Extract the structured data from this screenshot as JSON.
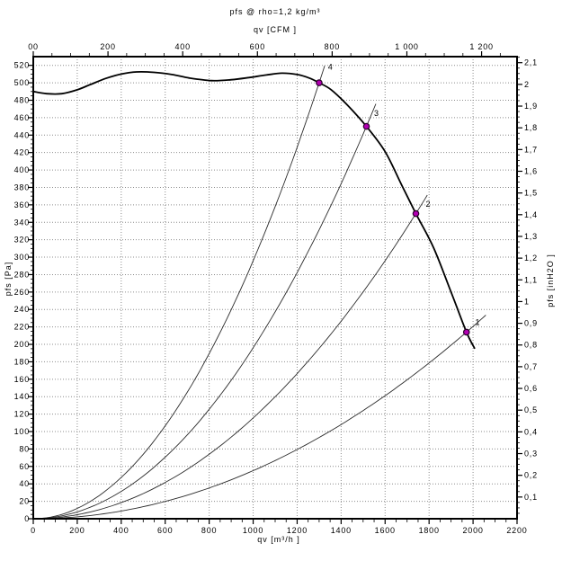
{
  "chart_data": {
    "type": "line",
    "title": "pfs @ rho=1,2 kg/m³",
    "axes": {
      "bottom": {
        "label": "qv [m³/h ]",
        "min": 0,
        "max": 2200,
        "major_step": 200,
        "minor_step": 50,
        "tick_values": [
          0,
          200,
          400,
          600,
          800,
          1000,
          1200,
          1400,
          1600,
          1800,
          2000,
          2200
        ],
        "tick_labels": [
          "0",
          "200",
          "400",
          "600",
          "800",
          "1000",
          "1200",
          "1400",
          "1600",
          "1800",
          "2000",
          "2200"
        ]
      },
      "top": {
        "label": "qv [CFM ]",
        "unit": "CFM",
        "m3h_per_cfm": 1.699011,
        "major_step": 200,
        "minor_step": 50,
        "tick_values": [
          0,
          200,
          400,
          600,
          800,
          1000,
          1200
        ],
        "tick_labels": [
          "00",
          "200",
          "400",
          "600",
          "800",
          "1 000",
          "1 200"
        ]
      },
      "left": {
        "label": "pfs [Pa]",
        "min": 0,
        "max": 530,
        "major_step": 20,
        "minor_step": 5,
        "labeled_max": 520,
        "tick_labels": [
          "0",
          "20",
          "40",
          "60",
          "80",
          "100",
          "120",
          "140",
          "160",
          "180",
          "200",
          "220",
          "240",
          "260",
          "280",
          "300",
          "320",
          "340",
          "360",
          "380",
          "400",
          "420",
          "440",
          "460",
          "480",
          "500",
          "520"
        ]
      },
      "right": {
        "label": "pfs [inH2O ]",
        "unit": "inH2O",
        "pa_per_unit": 249.089,
        "major_step": 0.1,
        "minor_step": 0.025,
        "tick_values": [
          0.1,
          0.2,
          0.3,
          0.4,
          0.5,
          0.6,
          0.7,
          0.8,
          0.9,
          1,
          1.1,
          1.2,
          1.3,
          1.4,
          1.5,
          1.6,
          1.7,
          1.8,
          1.9,
          2,
          2.1
        ],
        "tick_labels": [
          "0,1",
          "0,2",
          "0,3",
          "0,4",
          "0,5",
          "0,6",
          "0,7",
          "0,8",
          "0,9",
          "1",
          "1,1",
          "1,2",
          "1,3",
          "1,4",
          "1,5",
          "1,6",
          "1,7",
          "1,8",
          "1,9",
          "2",
          "2,1"
        ]
      }
    },
    "grid": {
      "show": true,
      "style": "dotted",
      "color": "#8c8c8c"
    },
    "fan_curve": {
      "name": "fan-pressure-curve",
      "points": [
        [
          0,
          490
        ],
        [
          60,
          487.5
        ],
        [
          130,
          487.5
        ],
        [
          200,
          492
        ],
        [
          260,
          498
        ],
        [
          330,
          505
        ],
        [
          400,
          510
        ],
        [
          470,
          512.5
        ],
        [
          550,
          512
        ],
        [
          630,
          509.5
        ],
        [
          710,
          505.5
        ],
        [
          810,
          502.5
        ],
        [
          900,
          503.5
        ],
        [
          980,
          506
        ],
        [
          1060,
          509
        ],
        [
          1130,
          511
        ],
        [
          1200,
          509.5
        ],
        [
          1255,
          505.5
        ],
        [
          1300,
          500
        ],
        [
          1355,
          492
        ],
        [
          1430,
          474
        ],
        [
          1515,
          450
        ],
        [
          1600,
          421
        ],
        [
          1675,
          383
        ],
        [
          1740,
          350
        ],
        [
          1820,
          311
        ],
        [
          1900,
          260
        ],
        [
          1970,
          214
        ],
        [
          2008,
          195
        ]
      ]
    },
    "system_curves": [
      {
        "label": "4",
        "k": 0.00029586,
        "qv_end": 1325,
        "label_at": [
          1340,
          515
        ]
      },
      {
        "label": "3",
        "k": 0.00019606,
        "qv_end": 1558,
        "label_at": [
          1550,
          462
        ]
      },
      {
        "label": "2",
        "k": 0.0001156,
        "qv_end": 1792,
        "label_at": [
          1785,
          358
        ]
      },
      {
        "label": "1",
        "k": 5.5142e-05,
        "qv_end": 2058,
        "label_at": [
          2010,
          222
        ]
      }
    ],
    "operating_points": [
      {
        "label": "4",
        "qv_m3h": 1300,
        "pfs_pa": 500,
        "pfs_inh2o": 2.01
      },
      {
        "label": "3",
        "qv_m3h": 1515,
        "pfs_pa": 450,
        "pfs_inh2o": 1.81
      },
      {
        "label": "2",
        "qv_m3h": 1740,
        "pfs_pa": 350,
        "pfs_inh2o": 1.41
      },
      {
        "label": "1",
        "qv_m3h": 1970,
        "pfs_pa": 214,
        "pfs_inh2o": 0.86
      }
    ],
    "colors": {
      "fan_curve": "#000000",
      "system_curve": "#2b2b2b",
      "grid": "#8c8c8c",
      "frame": "#000000",
      "point_fill": "#b300b3",
      "point_stroke": "#2a002a",
      "text": "#000000",
      "background": "#ffffff"
    },
    "legend": null
  }
}
